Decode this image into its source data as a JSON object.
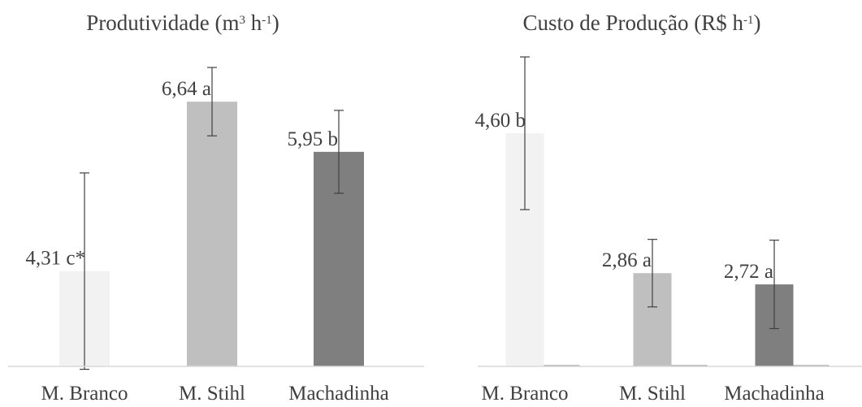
{
  "chart_data": [
    {
      "type": "bar",
      "title": {
        "parts": [
          {
            "text": "Produtividade (m"
          },
          {
            "text": "3",
            "sup": true
          },
          {
            "text": " h"
          },
          {
            "text": "-1",
            "sup": true
          },
          {
            "text": ")"
          }
        ]
      },
      "categories": [
        "M. Branco",
        "M. Stihl",
        "Machadinha"
      ],
      "values": [
        4.31,
        6.64,
        5.95
      ],
      "errors": [
        1.35,
        0.47,
        0.57
      ],
      "data_labels": [
        "4,31 c*",
        "6,64 a",
        "5,95 b"
      ],
      "colors": [
        "#f2f2f2",
        "#bfbfbf",
        "#7f7f7f"
      ],
      "ylim": [
        3.0,
        7.2
      ],
      "grid": false,
      "legend": "none"
    },
    {
      "type": "bar",
      "title": {
        "parts": [
          {
            "text": "Custo de Produção (R$ h"
          },
          {
            "text": "-1",
            "sup": true
          },
          {
            "text": ")"
          }
        ]
      },
      "categories": [
        "M. Branco",
        "M. Stihl",
        "Machadinha"
      ],
      "values": [
        4.6,
        2.86,
        2.72
      ],
      "errors": [
        0.95,
        0.42,
        0.55
      ],
      "data_labels": [
        "4,60 b",
        "2,86 a",
        "2,72 a"
      ],
      "colors": [
        "#f2f2f2",
        "#bfbfbf",
        "#7f7f7f"
      ],
      "secondary_values": [
        0,
        0,
        0
      ],
      "ylim": [
        1.7,
        5.5
      ],
      "grid": false,
      "legend": "none"
    }
  ]
}
